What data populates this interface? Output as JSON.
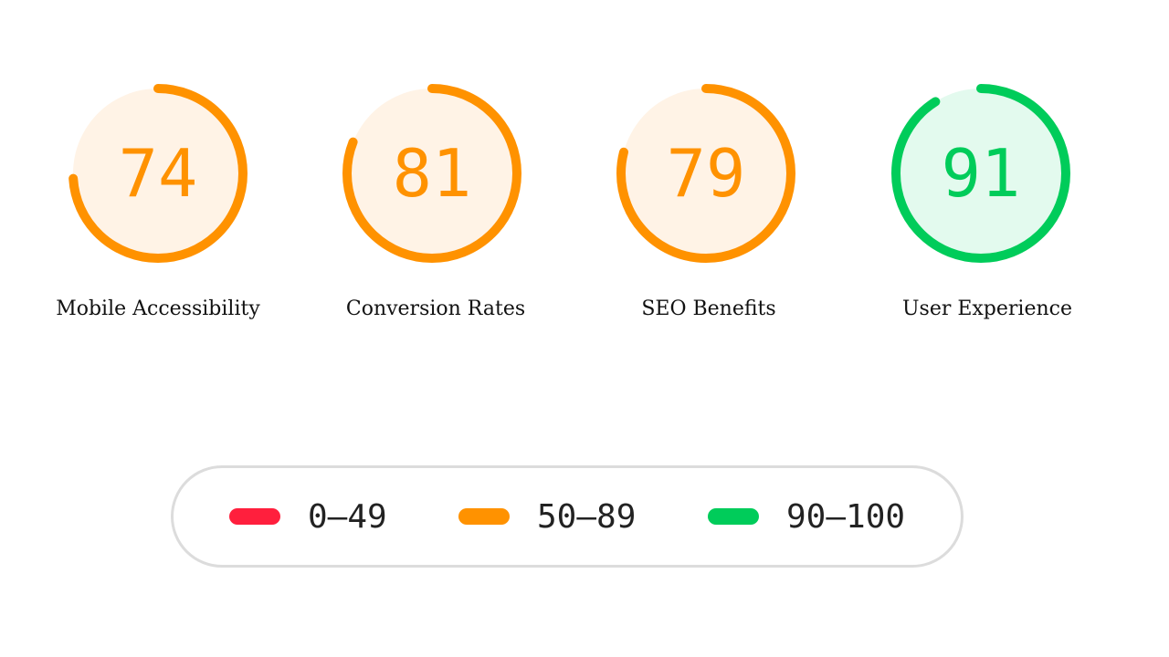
{
  "colors": {
    "fail": "#ff1f3d",
    "average": "#ff9200",
    "pass": "#00cc5a",
    "average_fill": "#fff3e6",
    "pass_fill": "#e3faee"
  },
  "gauges": [
    {
      "score": "74",
      "value": 74,
      "label": "Mobile Accessibility",
      "rating": "average"
    },
    {
      "score": "81",
      "value": 81,
      "label": "Conversion Rates",
      "rating": "average"
    },
    {
      "score": "79",
      "value": 79,
      "label": "SEO Benefits",
      "rating": "average"
    },
    {
      "score": "91",
      "value": 91,
      "label": "User Experience",
      "rating": "pass"
    }
  ],
  "legend": [
    {
      "range": "0–49",
      "rating": "fail"
    },
    {
      "range": "50–89",
      "rating": "average"
    },
    {
      "range": "90–100",
      "rating": "pass"
    }
  ]
}
